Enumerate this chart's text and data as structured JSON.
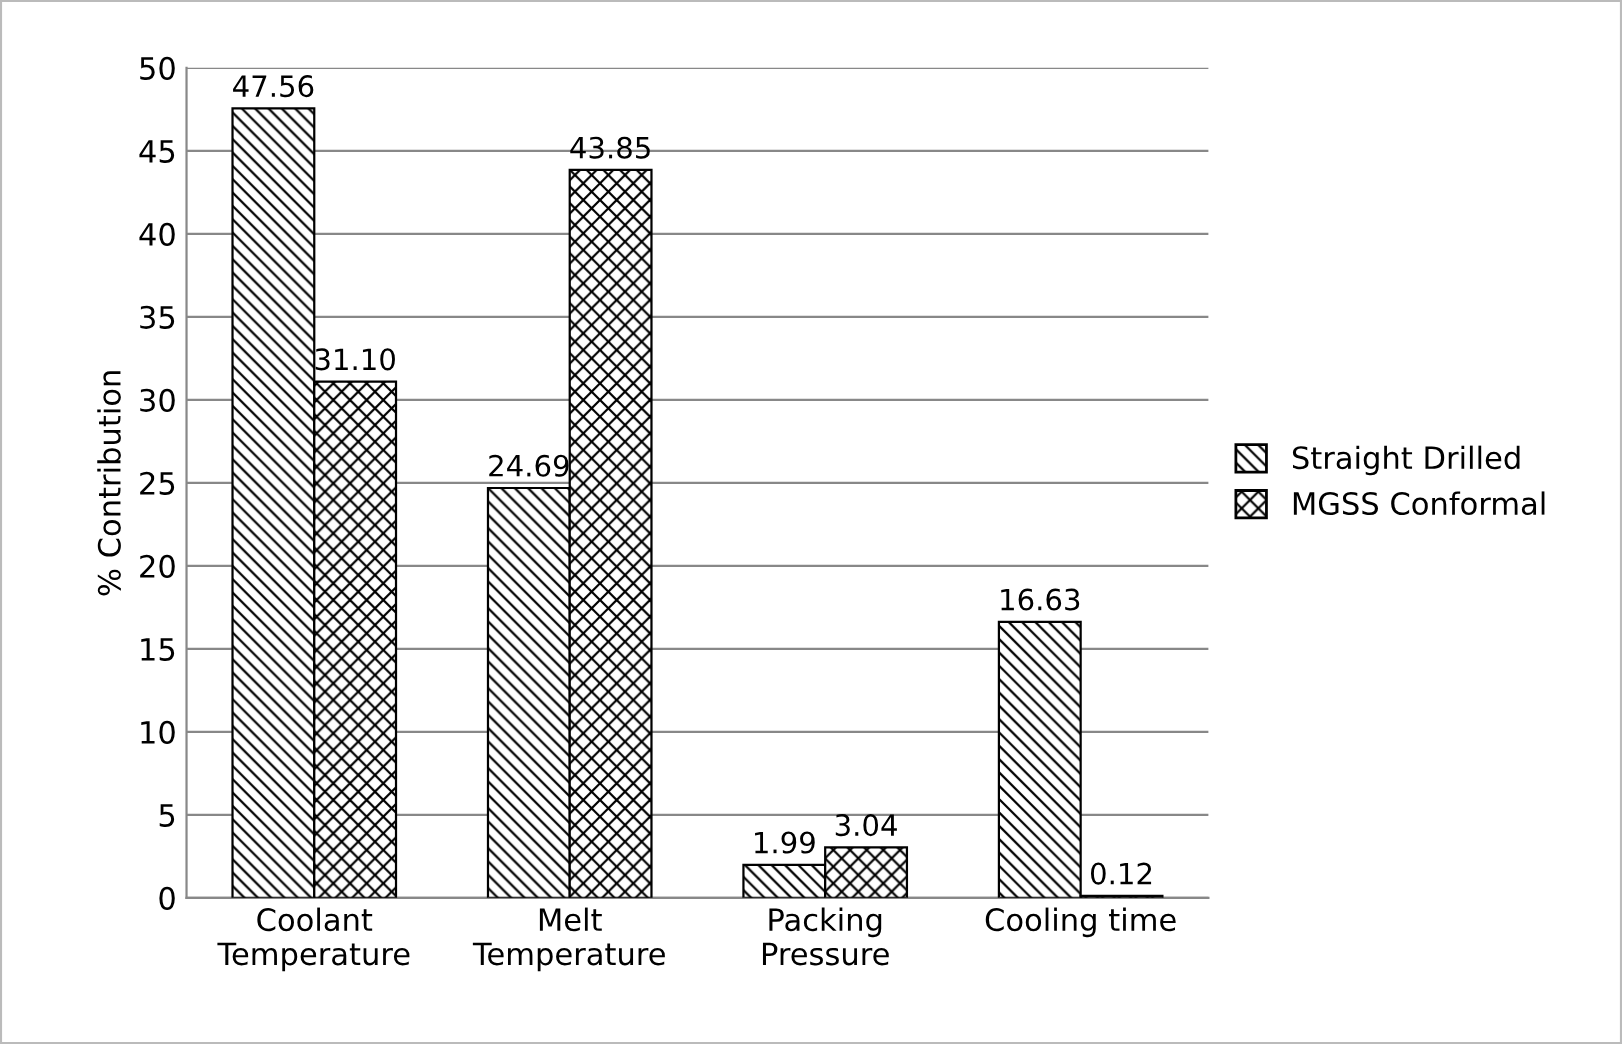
{
  "chart_data": {
    "type": "bar",
    "ylabel": "% Contribution",
    "categories": [
      "Coolant\nTemperature",
      "Melt\nTemperature",
      "Packing\nPressure",
      "Cooling time"
    ],
    "series": [
      {
        "name": "Straight Drilled",
        "color": "#000000",
        "values": [
          47.56,
          24.69,
          1.99,
          16.63
        ],
        "value_labels": [
          "47.56",
          "24.69",
          "1.99",
          "16.63"
        ]
      },
      {
        "name": "MGSS Conformal",
        "color": "#000000",
        "values": [
          31.1,
          43.85,
          3.04,
          0.12
        ],
        "value_labels": [
          "31.10",
          "43.85",
          "3.04",
          "0.12"
        ]
      }
    ],
    "ylim": [
      0,
      50
    ],
    "yticks": [
      0,
      5,
      10,
      15,
      20,
      25,
      30,
      35,
      40,
      45,
      50
    ],
    "grid": "y",
    "legend": "right"
  }
}
